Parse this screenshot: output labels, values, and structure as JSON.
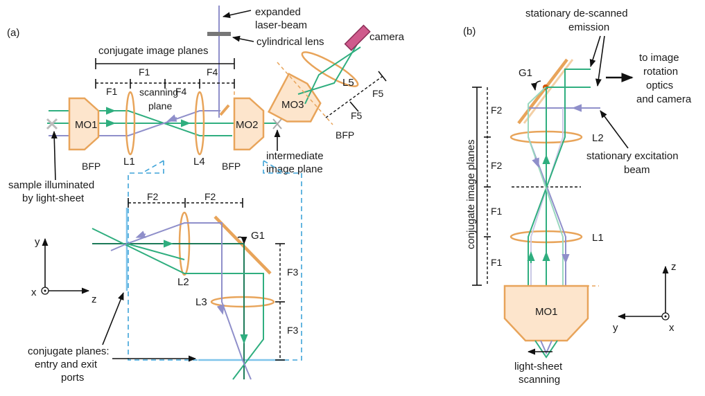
{
  "panel_a": {
    "label": "(a)",
    "expanded_beam": "expanded\nlaser-beam",
    "cylindrical_lens": "cylindrical lens",
    "camera": "camera",
    "conjugate_image_planes": "conjugate image planes",
    "f1": "F1",
    "f4": "F4",
    "scanning_plane": "scanning\nplane",
    "mo1": "MO1",
    "mo2": "MO2",
    "mo3": "MO3",
    "l1": "L1",
    "l4": "L4",
    "l5": "L5",
    "f5": "F5",
    "bfp": "BFP",
    "intermediate": "intermediate\nimage plane",
    "sample": "sample illuminated\nby light-sheet"
  },
  "inset": {
    "f2": "F2",
    "f3": "F3",
    "g1": "G1",
    "l2": "L2",
    "l3": "L3",
    "axis_y": "y",
    "axis_x": "x",
    "axis_z": "z",
    "ports": "conjugate planes:\nentry and exit\nports"
  },
  "panel_b": {
    "label": "(b)",
    "descanned": "stationary de-scanned\nemission",
    "to_image": "to image\nrotation\noptics\nand camera",
    "g1": "G1",
    "f2": "F2",
    "f1": "F1",
    "l2": "L2",
    "l1": "L1",
    "conjugate_image_planes": "conjugate image planes",
    "excitation": "stationary excitation\nbeam",
    "mo1": "MO1",
    "scan": "light-sheet\nscanning",
    "axis_z": "z",
    "axis_y": "y",
    "axis_x": "x"
  },
  "colors": {
    "emission": "#2fae7f",
    "excitation": "#8f8fca",
    "optics": "#e8a45a",
    "optics_fill": "#fde5cc",
    "inset_frame": "#3ea3d8"
  }
}
